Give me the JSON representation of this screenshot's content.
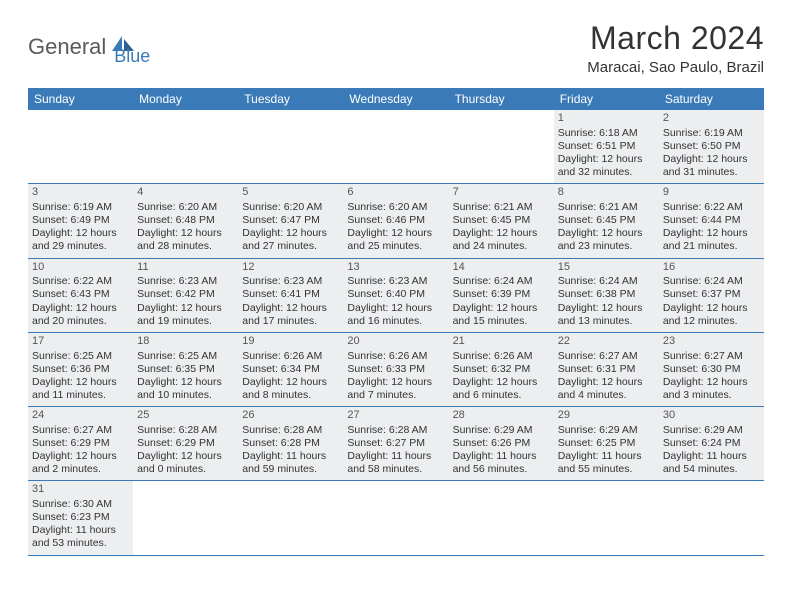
{
  "logo": {
    "part1": "General",
    "part2": "Blue"
  },
  "title": "March 2024",
  "location": "Maracai, Sao Paulo, Brazil",
  "colors": {
    "header_bg": "#3a7ab8",
    "shaded_bg": "#eceef0",
    "row_border": "#3a7ab8",
    "text": "#333333",
    "logo_gray": "#5a5a5a",
    "logo_blue": "#3a7ab8"
  },
  "days_of_week": [
    "Sunday",
    "Monday",
    "Tuesday",
    "Wednesday",
    "Thursday",
    "Friday",
    "Saturday"
  ],
  "weeks": [
    [
      {
        "n": "",
        "sr": "",
        "ss": "",
        "dl": ""
      },
      {
        "n": "",
        "sr": "",
        "ss": "",
        "dl": ""
      },
      {
        "n": "",
        "sr": "",
        "ss": "",
        "dl": ""
      },
      {
        "n": "",
        "sr": "",
        "ss": "",
        "dl": ""
      },
      {
        "n": "",
        "sr": "",
        "ss": "",
        "dl": ""
      },
      {
        "n": "1",
        "sr": "Sunrise: 6:18 AM",
        "ss": "Sunset: 6:51 PM",
        "dl": "Daylight: 12 hours and 32 minutes."
      },
      {
        "n": "2",
        "sr": "Sunrise: 6:19 AM",
        "ss": "Sunset: 6:50 PM",
        "dl": "Daylight: 12 hours and 31 minutes."
      }
    ],
    [
      {
        "n": "3",
        "sr": "Sunrise: 6:19 AM",
        "ss": "Sunset: 6:49 PM",
        "dl": "Daylight: 12 hours and 29 minutes."
      },
      {
        "n": "4",
        "sr": "Sunrise: 6:20 AM",
        "ss": "Sunset: 6:48 PM",
        "dl": "Daylight: 12 hours and 28 minutes."
      },
      {
        "n": "5",
        "sr": "Sunrise: 6:20 AM",
        "ss": "Sunset: 6:47 PM",
        "dl": "Daylight: 12 hours and 27 minutes."
      },
      {
        "n": "6",
        "sr": "Sunrise: 6:20 AM",
        "ss": "Sunset: 6:46 PM",
        "dl": "Daylight: 12 hours and 25 minutes."
      },
      {
        "n": "7",
        "sr": "Sunrise: 6:21 AM",
        "ss": "Sunset: 6:45 PM",
        "dl": "Daylight: 12 hours and 24 minutes."
      },
      {
        "n": "8",
        "sr": "Sunrise: 6:21 AM",
        "ss": "Sunset: 6:45 PM",
        "dl": "Daylight: 12 hours and 23 minutes."
      },
      {
        "n": "9",
        "sr": "Sunrise: 6:22 AM",
        "ss": "Sunset: 6:44 PM",
        "dl": "Daylight: 12 hours and 21 minutes."
      }
    ],
    [
      {
        "n": "10",
        "sr": "Sunrise: 6:22 AM",
        "ss": "Sunset: 6:43 PM",
        "dl": "Daylight: 12 hours and 20 minutes."
      },
      {
        "n": "11",
        "sr": "Sunrise: 6:23 AM",
        "ss": "Sunset: 6:42 PM",
        "dl": "Daylight: 12 hours and 19 minutes."
      },
      {
        "n": "12",
        "sr": "Sunrise: 6:23 AM",
        "ss": "Sunset: 6:41 PM",
        "dl": "Daylight: 12 hours and 17 minutes."
      },
      {
        "n": "13",
        "sr": "Sunrise: 6:23 AM",
        "ss": "Sunset: 6:40 PM",
        "dl": "Daylight: 12 hours and 16 minutes."
      },
      {
        "n": "14",
        "sr": "Sunrise: 6:24 AM",
        "ss": "Sunset: 6:39 PM",
        "dl": "Daylight: 12 hours and 15 minutes."
      },
      {
        "n": "15",
        "sr": "Sunrise: 6:24 AM",
        "ss": "Sunset: 6:38 PM",
        "dl": "Daylight: 12 hours and 13 minutes."
      },
      {
        "n": "16",
        "sr": "Sunrise: 6:24 AM",
        "ss": "Sunset: 6:37 PM",
        "dl": "Daylight: 12 hours and 12 minutes."
      }
    ],
    [
      {
        "n": "17",
        "sr": "Sunrise: 6:25 AM",
        "ss": "Sunset: 6:36 PM",
        "dl": "Daylight: 12 hours and 11 minutes."
      },
      {
        "n": "18",
        "sr": "Sunrise: 6:25 AM",
        "ss": "Sunset: 6:35 PM",
        "dl": "Daylight: 12 hours and 10 minutes."
      },
      {
        "n": "19",
        "sr": "Sunrise: 6:26 AM",
        "ss": "Sunset: 6:34 PM",
        "dl": "Daylight: 12 hours and 8 minutes."
      },
      {
        "n": "20",
        "sr": "Sunrise: 6:26 AM",
        "ss": "Sunset: 6:33 PM",
        "dl": "Daylight: 12 hours and 7 minutes."
      },
      {
        "n": "21",
        "sr": "Sunrise: 6:26 AM",
        "ss": "Sunset: 6:32 PM",
        "dl": "Daylight: 12 hours and 6 minutes."
      },
      {
        "n": "22",
        "sr": "Sunrise: 6:27 AM",
        "ss": "Sunset: 6:31 PM",
        "dl": "Daylight: 12 hours and 4 minutes."
      },
      {
        "n": "23",
        "sr": "Sunrise: 6:27 AM",
        "ss": "Sunset: 6:30 PM",
        "dl": "Daylight: 12 hours and 3 minutes."
      }
    ],
    [
      {
        "n": "24",
        "sr": "Sunrise: 6:27 AM",
        "ss": "Sunset: 6:29 PM",
        "dl": "Daylight: 12 hours and 2 minutes."
      },
      {
        "n": "25",
        "sr": "Sunrise: 6:28 AM",
        "ss": "Sunset: 6:29 PM",
        "dl": "Daylight: 12 hours and 0 minutes."
      },
      {
        "n": "26",
        "sr": "Sunrise: 6:28 AM",
        "ss": "Sunset: 6:28 PM",
        "dl": "Daylight: 11 hours and 59 minutes."
      },
      {
        "n": "27",
        "sr": "Sunrise: 6:28 AM",
        "ss": "Sunset: 6:27 PM",
        "dl": "Daylight: 11 hours and 58 minutes."
      },
      {
        "n": "28",
        "sr": "Sunrise: 6:29 AM",
        "ss": "Sunset: 6:26 PM",
        "dl": "Daylight: 11 hours and 56 minutes."
      },
      {
        "n": "29",
        "sr": "Sunrise: 6:29 AM",
        "ss": "Sunset: 6:25 PM",
        "dl": "Daylight: 11 hours and 55 minutes."
      },
      {
        "n": "30",
        "sr": "Sunrise: 6:29 AM",
        "ss": "Sunset: 6:24 PM",
        "dl": "Daylight: 11 hours and 54 minutes."
      }
    ],
    [
      {
        "n": "31",
        "sr": "Sunrise: 6:30 AM",
        "ss": "Sunset: 6:23 PM",
        "dl": "Daylight: 11 hours and 53 minutes."
      },
      {
        "n": "",
        "sr": "",
        "ss": "",
        "dl": ""
      },
      {
        "n": "",
        "sr": "",
        "ss": "",
        "dl": ""
      },
      {
        "n": "",
        "sr": "",
        "ss": "",
        "dl": ""
      },
      {
        "n": "",
        "sr": "",
        "ss": "",
        "dl": ""
      },
      {
        "n": "",
        "sr": "",
        "ss": "",
        "dl": ""
      },
      {
        "n": "",
        "sr": "",
        "ss": "",
        "dl": ""
      }
    ]
  ]
}
